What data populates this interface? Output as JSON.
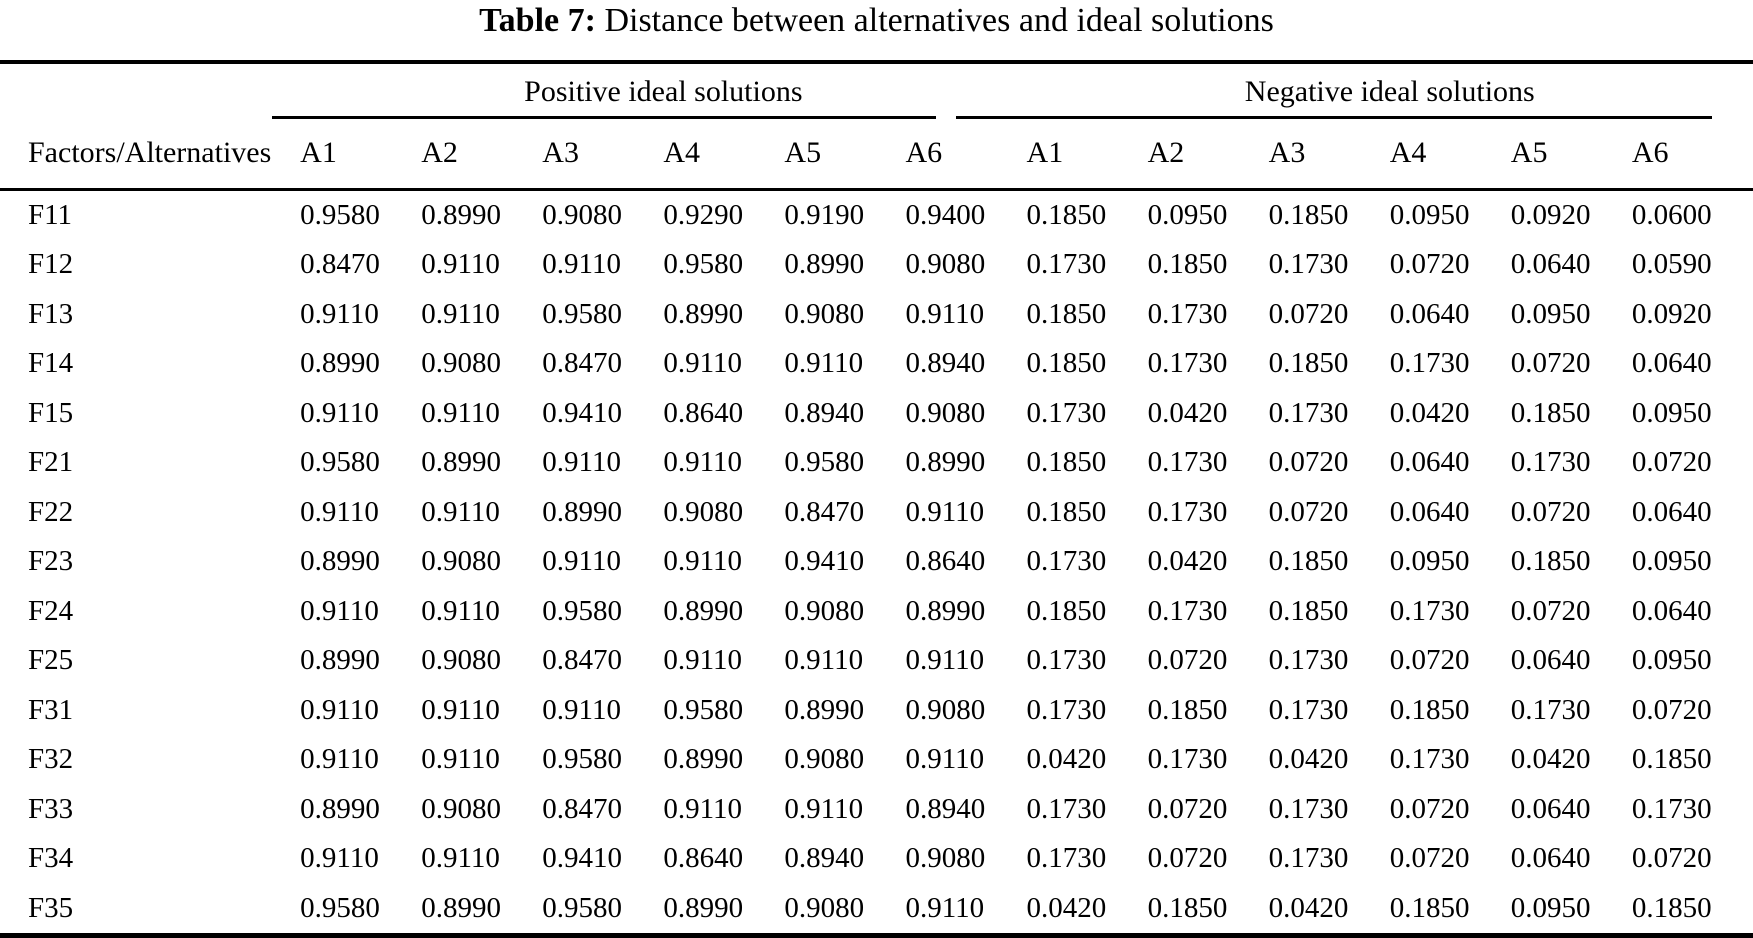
{
  "page": {
    "background_color": "#ffffff",
    "text_color": "#000000",
    "rule_color": "#000000"
  },
  "title": {
    "prefix": "Table 7:",
    "rest": " Distance between alternatives and ideal solutions"
  },
  "table": {
    "row_header": "Factors/Alternatives",
    "groups": [
      {
        "label": "Positive ideal solutions",
        "columns": [
          "A1",
          "A2",
          "A3",
          "A4",
          "A5",
          "A6"
        ]
      },
      {
        "label": "Negative ideal solutions",
        "columns": [
          "A1",
          "A2",
          "A3",
          "A4",
          "A5",
          "A6"
        ]
      }
    ],
    "rows": [
      {
        "factor": "F11",
        "positive": [
          "0.9580",
          "0.8990",
          "0.9080",
          "0.9290",
          "0.9190",
          "0.9400"
        ],
        "negative": [
          "0.1850",
          "0.0950",
          "0.1850",
          "0.0950",
          "0.0920",
          "0.0600"
        ]
      },
      {
        "factor": "F12",
        "positive": [
          "0.8470",
          "0.9110",
          "0.9110",
          "0.9580",
          "0.8990",
          "0.9080"
        ],
        "negative": [
          "0.1730",
          "0.1850",
          "0.1730",
          "0.0720",
          "0.0640",
          "0.0590"
        ]
      },
      {
        "factor": "F13",
        "positive": [
          "0.9110",
          "0.9110",
          "0.9580",
          "0.8990",
          "0.9080",
          "0.9110"
        ],
        "negative": [
          "0.1850",
          "0.1730",
          "0.0720",
          "0.0640",
          "0.0950",
          "0.0920"
        ]
      },
      {
        "factor": "F14",
        "positive": [
          "0.8990",
          "0.9080",
          "0.8470",
          "0.9110",
          "0.9110",
          "0.8940"
        ],
        "negative": [
          "0.1850",
          "0.1730",
          "0.1850",
          "0.1730",
          "0.0720",
          "0.0640"
        ]
      },
      {
        "factor": "F15",
        "positive": [
          "0.9110",
          "0.9110",
          "0.9410",
          "0.8640",
          "0.8940",
          "0.9080"
        ],
        "negative": [
          "0.1730",
          "0.0420",
          "0.1730",
          "0.0420",
          "0.1850",
          "0.0950"
        ]
      },
      {
        "factor": "F21",
        "positive": [
          "0.9580",
          "0.8990",
          "0.9110",
          "0.9110",
          "0.9580",
          "0.8990"
        ],
        "negative": [
          "0.1850",
          "0.1730",
          "0.0720",
          "0.0640",
          "0.1730",
          "0.0720"
        ]
      },
      {
        "factor": "F22",
        "positive": [
          "0.9110",
          "0.9110",
          "0.8990",
          "0.9080",
          "0.8470",
          "0.9110"
        ],
        "negative": [
          "0.1850",
          "0.1730",
          "0.0720",
          "0.0640",
          "0.0720",
          "0.0640"
        ]
      },
      {
        "factor": "F23",
        "positive": [
          "0.8990",
          "0.9080",
          "0.9110",
          "0.9110",
          "0.9410",
          "0.8640"
        ],
        "negative": [
          "0.1730",
          "0.0420",
          "0.1850",
          "0.0950",
          "0.1850",
          "0.0950"
        ]
      },
      {
        "factor": "F24",
        "positive": [
          "0.9110",
          "0.9110",
          "0.9580",
          "0.8990",
          "0.9080",
          "0.8990"
        ],
        "negative": [
          "0.1850",
          "0.1730",
          "0.1850",
          "0.1730",
          "0.0720",
          "0.0640"
        ]
      },
      {
        "factor": "F25",
        "positive": [
          "0.8990",
          "0.9080",
          "0.8470",
          "0.9110",
          "0.9110",
          "0.9110"
        ],
        "negative": [
          "0.1730",
          "0.0720",
          "0.1730",
          "0.0720",
          "0.0640",
          "0.0950"
        ]
      },
      {
        "factor": "F31",
        "positive": [
          "0.9110",
          "0.9110",
          "0.9110",
          "0.9580",
          "0.8990",
          "0.9080"
        ],
        "negative": [
          "0.1730",
          "0.1850",
          "0.1730",
          "0.1850",
          "0.1730",
          "0.0720"
        ]
      },
      {
        "factor": "F32",
        "positive": [
          "0.9110",
          "0.9110",
          "0.9580",
          "0.8990",
          "0.9080",
          "0.9110"
        ],
        "negative": [
          "0.0420",
          "0.1730",
          "0.0420",
          "0.1730",
          "0.0420",
          "0.1850"
        ]
      },
      {
        "factor": "F33",
        "positive": [
          "0.8990",
          "0.9080",
          "0.8470",
          "0.9110",
          "0.9110",
          "0.8940"
        ],
        "negative": [
          "0.1730",
          "0.0720",
          "0.1730",
          "0.0720",
          "0.0640",
          "0.1730"
        ]
      },
      {
        "factor": "F34",
        "positive": [
          "0.9110",
          "0.9110",
          "0.9410",
          "0.8640",
          "0.8940",
          "0.9080"
        ],
        "negative": [
          "0.1730",
          "0.0720",
          "0.1730",
          "0.0720",
          "0.0640",
          "0.0720"
        ]
      },
      {
        "factor": "F35",
        "positive": [
          "0.9580",
          "0.8990",
          "0.9580",
          "0.8990",
          "0.9080",
          "0.9110"
        ],
        "negative": [
          "0.0420",
          "0.1850",
          "0.0420",
          "0.1850",
          "0.0950",
          "0.1850"
        ]
      }
    ]
  }
}
